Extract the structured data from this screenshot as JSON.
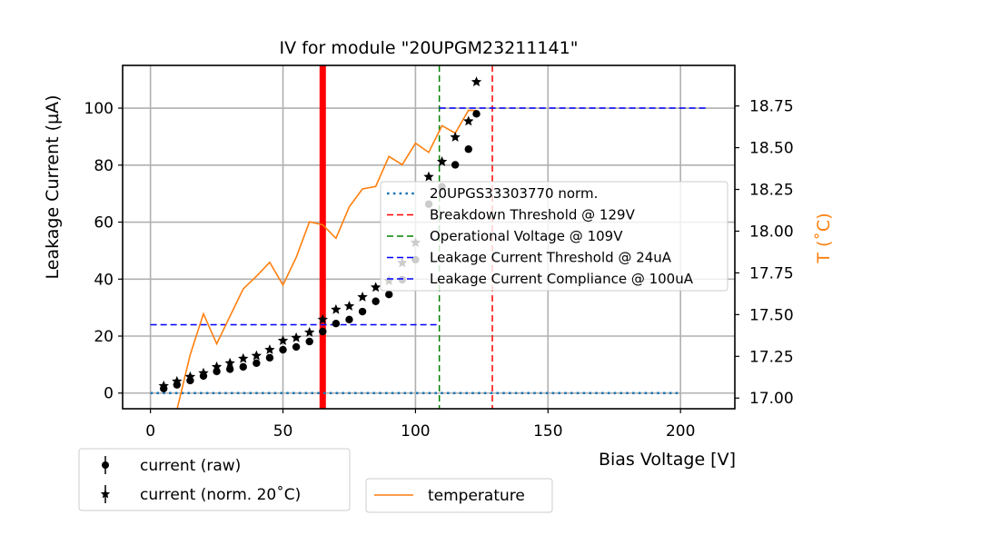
{
  "chart_data": {
    "type": "scatter",
    "title": "IV for module \"20UPGM23211141\"",
    "xlabel": "Bias Voltage [V]",
    "ylabel": "Leakage Current (µA)",
    "y2label": "T ($^\\circ$C)",
    "y2label_display": "T (˚C)",
    "xlim": [
      -10.5,
      220.5
    ],
    "ylim": [
      -5.5,
      115
    ],
    "y2lim": [
      16.936,
      18.993
    ],
    "grid": true,
    "xticks": [
      0,
      50,
      100,
      150,
      200
    ],
    "xtick_labels": [
      "0",
      "50",
      "100",
      "150",
      "200"
    ],
    "yticks": [
      0,
      20,
      40,
      60,
      80,
      100
    ],
    "ytick_labels": [
      "0",
      "20",
      "40",
      "60",
      "80",
      "100"
    ],
    "y2ticks": [
      17.0,
      17.25,
      17.5,
      17.75,
      18.0,
      18.25,
      18.5,
      18.75
    ],
    "y2tick_labels": [
      "17.00",
      "17.25",
      "17.50",
      "17.75",
      "18.00",
      "18.25",
      "18.50",
      "18.75"
    ],
    "colors": {
      "grid": "#b0b0b0",
      "temperature": "#ff7f0e",
      "norm_ref": "#1f77b4",
      "breakdown": "#ff0000",
      "operational": "#008000",
      "leakage": "#0000ff",
      "red_band": "#ff0000",
      "markers": "#000000"
    },
    "series": [
      {
        "name": "current (raw)",
        "marker": "circle",
        "axis": "left",
        "x": [
          5,
          10,
          15,
          20,
          25,
          30,
          35,
          40,
          45,
          50,
          55,
          60,
          65,
          70,
          75,
          80,
          85,
          90,
          95,
          100,
          105,
          110,
          115,
          120,
          123
        ],
        "y": [
          1.6,
          2.9,
          4.4,
          6.0,
          7.6,
          8.4,
          9.2,
          10.5,
          12.4,
          15.2,
          16.2,
          18.1,
          21.6,
          24.4,
          25.8,
          28.6,
          32.2,
          34.6,
          39.8,
          46.8,
          66.3,
          72.4,
          80.1,
          85.6,
          98.0
        ]
      },
      {
        "name": "current (norm. 20˚C)",
        "marker": "star",
        "axis": "left",
        "x": [
          5,
          10,
          15,
          20,
          25,
          30,
          35,
          40,
          45,
          50,
          55,
          60,
          65,
          70,
          75,
          80,
          85,
          90,
          95,
          100,
          105,
          110,
          115,
          120,
          123
        ],
        "y": [
          2.5,
          4.1,
          5.7,
          7.0,
          9.2,
          10.5,
          12.1,
          13.1,
          15.2,
          18.4,
          19.4,
          21.3,
          25.8,
          29.3,
          30.5,
          33.7,
          37.1,
          39.4,
          45.7,
          52.8,
          75.9,
          81.2,
          89.8,
          95.4,
          109.2
        ]
      },
      {
        "name": "temperature",
        "type": "line",
        "axis": "right",
        "x": [
          5,
          10,
          15,
          20,
          25,
          30,
          35,
          40,
          45,
          50,
          55,
          60,
          65,
          70,
          75,
          80,
          85,
          90,
          95,
          100,
          105,
          110,
          115,
          120,
          123
        ],
        "y": [
          16.6,
          16.93,
          17.26,
          17.505,
          17.325,
          17.49,
          17.654,
          17.73,
          17.813,
          17.677,
          17.843,
          18.056,
          18.038,
          17.957,
          18.145,
          18.253,
          18.268,
          18.448,
          18.398,
          18.527,
          18.472,
          18.632,
          18.587,
          18.724,
          18.723
        ]
      }
    ],
    "reference_lines": [
      {
        "name": "20UPGS33303770 norm.",
        "orientation": "horizontal",
        "y": 0,
        "x_range": [
          0,
          200
        ],
        "style": "dotted",
        "color": "#1f77b4"
      },
      {
        "name": "Breakdown Threshold @ 129V",
        "orientation": "vertical",
        "x": 129,
        "style": "dashed",
        "color": "#ff0000"
      },
      {
        "name": "Operational Voltage @ 109V",
        "orientation": "vertical",
        "x": 109,
        "style": "dashed",
        "color": "#008000"
      },
      {
        "name": "Leakage Current Threshold @ 24uA",
        "orientation": "horizontal",
        "y": 24,
        "x_range": [
          0,
          109
        ],
        "style": "dashed",
        "color": "#0000ff"
      },
      {
        "name": "Leakage Current Compliance @ 100uA",
        "orientation": "horizontal",
        "y": 100,
        "x_range": [
          109,
          210
        ],
        "style": "dashed",
        "color": "#0000ff"
      }
    ],
    "highlight_band": {
      "x": 65,
      "color": "#ff0000"
    },
    "legends": {
      "inner": {
        "placement": "center-right",
        "entries": [
          "20UPGS33303770 norm.",
          "Breakdown Threshold @ 129V",
          "Operational Voltage @ 109V",
          "Leakage Current Threshold @ 24uA",
          "Leakage Current Compliance @ 100uA"
        ]
      },
      "markers": {
        "placement": "below-left",
        "entries": [
          "current (raw)",
          "current (norm. 20˚C)"
        ]
      },
      "temperature": {
        "placement": "below-center",
        "entries": [
          "temperature"
        ]
      }
    }
  }
}
